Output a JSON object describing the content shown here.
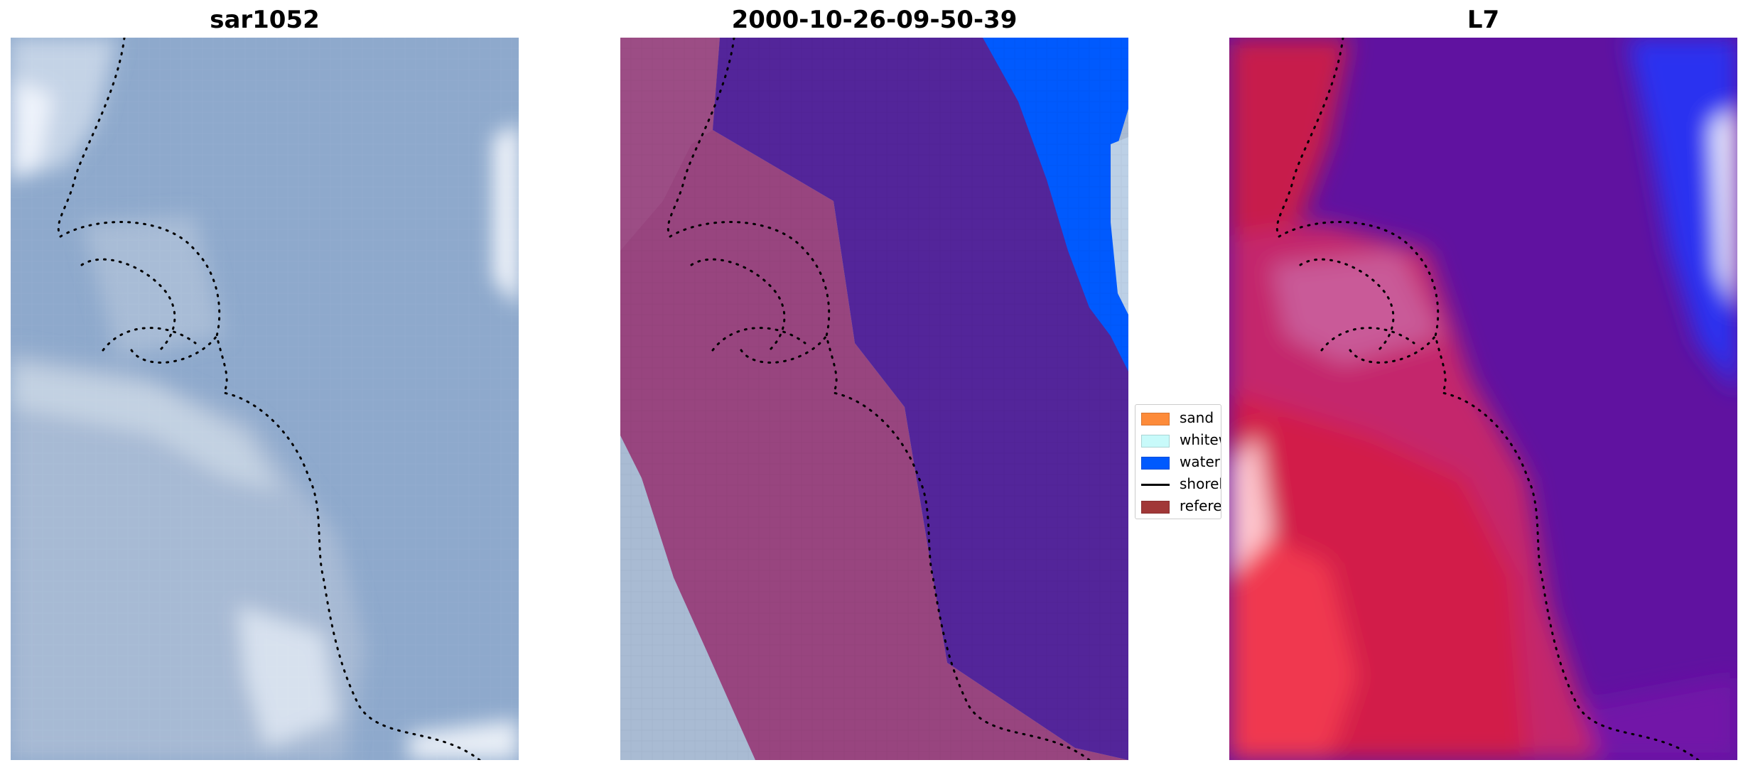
{
  "panels": [
    {
      "title": "sar1052"
    },
    {
      "title": "2000-10-26-09-50-39"
    },
    {
      "title": "L7"
    }
  ],
  "legend": {
    "items": [
      {
        "label": "sand",
        "color": "#fd8b3a"
      },
      {
        "label": "whitewater",
        "color": "#c8fafa"
      },
      {
        "label": "water",
        "color": "#005afe"
      },
      {
        "label": "shoreline",
        "color": "#000000"
      },
      {
        "label": "reference",
        "color": "#a13838"
      }
    ]
  },
  "colors": {
    "rgb_base": "#8ea9cc",
    "rgb_light": "#c9d6e6",
    "classified_land": "#98457f",
    "classified_water": "#53259a",
    "classified_blue": "#005afe",
    "ndwi_red": "#e01a3c",
    "ndwi_purple": "#6012a0",
    "ndwi_blue": "#2a32f0"
  }
}
